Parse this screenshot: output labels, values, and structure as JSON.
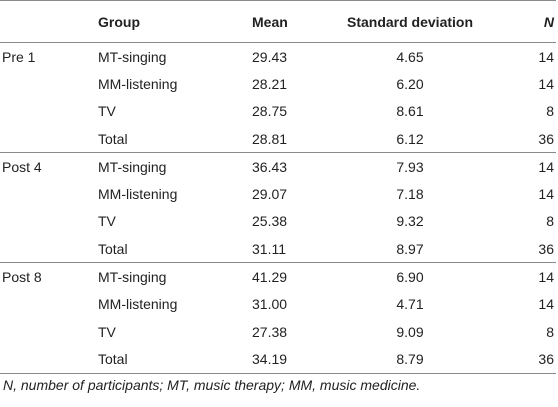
{
  "table": {
    "headers": {
      "time": "",
      "group": "Group",
      "mean": "Mean",
      "sd": "Standard deviation",
      "n": "N"
    },
    "sections": [
      {
        "label": "Pre 1",
        "rows": [
          {
            "group": "MT-singing",
            "mean": "29.43",
            "sd": "4.65",
            "n": "14"
          },
          {
            "group": "MM-listening",
            "mean": "28.21",
            "sd": "6.20",
            "n": "14"
          },
          {
            "group": "TV",
            "mean": "28.75",
            "sd": "8.61",
            "n": "8"
          },
          {
            "group": "Total",
            "mean": "28.81",
            "sd": "6.12",
            "n": "36"
          }
        ]
      },
      {
        "label": "Post 4",
        "rows": [
          {
            "group": "MT-singing",
            "mean": "36.43",
            "sd": "7.93",
            "n": "14"
          },
          {
            "group": "MM-listening",
            "mean": "29.07",
            "sd": "7.18",
            "n": "14"
          },
          {
            "group": "TV",
            "mean": "25.38",
            "sd": "9.32",
            "n": "8"
          },
          {
            "group": "Total",
            "mean": "31.11",
            "sd": "8.97",
            "n": "36"
          }
        ]
      },
      {
        "label": "Post 8",
        "rows": [
          {
            "group": "MT-singing",
            "mean": "41.29",
            "sd": "6.90",
            "n": "14"
          },
          {
            "group": "MM-listening",
            "mean": "31.00",
            "sd": "4.71",
            "n": "14"
          },
          {
            "group": "TV",
            "mean": "27.38",
            "sd": "9.09",
            "n": "8"
          },
          {
            "group": "Total",
            "mean": "34.19",
            "sd": "8.79",
            "n": "36"
          }
        ]
      }
    ]
  },
  "footnote": "N, number of participants; MT, music therapy; MM, music medicine."
}
